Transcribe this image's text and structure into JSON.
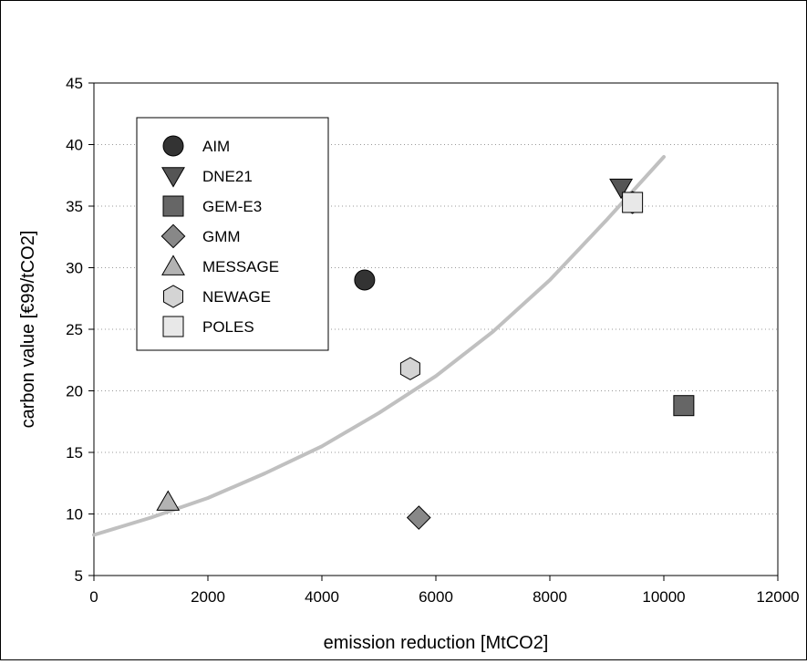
{
  "chart_data": {
    "type": "scatter",
    "xlabel": "emission reduction [MtCO2]",
    "ylabel": "carbon value [€99/tCO2]",
    "xlim": [
      0,
      12000
    ],
    "ylim": [
      5,
      45
    ],
    "x_ticks": [
      0,
      2000,
      4000,
      6000,
      8000,
      10000,
      12000
    ],
    "y_ticks": [
      5,
      10,
      15,
      20,
      25,
      30,
      35,
      40,
      45
    ],
    "grid": "horizontal dotted",
    "legend_position": "top-left",
    "series": [
      {
        "name": "AIM",
        "marker": "circle",
        "color": "#333333",
        "points": [
          [
            4750,
            29.0
          ]
        ]
      },
      {
        "name": "DNE21",
        "marker": "triangle-down",
        "color": "#555555",
        "points": [
          [
            9250,
            36.5
          ]
        ]
      },
      {
        "name": "GEM-E3",
        "marker": "square",
        "color": "#666666",
        "points": [
          [
            10350,
            18.8
          ]
        ]
      },
      {
        "name": "GMM",
        "marker": "diamond",
        "color": "#888888",
        "points": [
          [
            5700,
            9.7
          ]
        ]
      },
      {
        "name": "MESSAGE",
        "marker": "triangle-up",
        "color": "#b3b3b3",
        "points": [
          [
            1300,
            11.0
          ]
        ]
      },
      {
        "name": "NEWAGE",
        "marker": "hexagon",
        "color": "#d4d4d4",
        "points": [
          [
            5550,
            21.8
          ],
          [
            9450,
            35.3
          ]
        ]
      },
      {
        "name": "POLES",
        "marker": "square",
        "color": "#e8e8e8",
        "points": [
          [
            9450,
            35.3
          ]
        ]
      }
    ],
    "trendline": {
      "type": "exponential",
      "color": "#c0c0c0",
      "x": [
        0,
        1000,
        2000,
        3000,
        4000,
        5000,
        6000,
        7000,
        8000,
        9000,
        10000
      ],
      "y": [
        8.3,
        9.7,
        11.3,
        13.3,
        15.5,
        18.2,
        21.2,
        24.8,
        29.0,
        33.9,
        39.0
      ]
    }
  }
}
